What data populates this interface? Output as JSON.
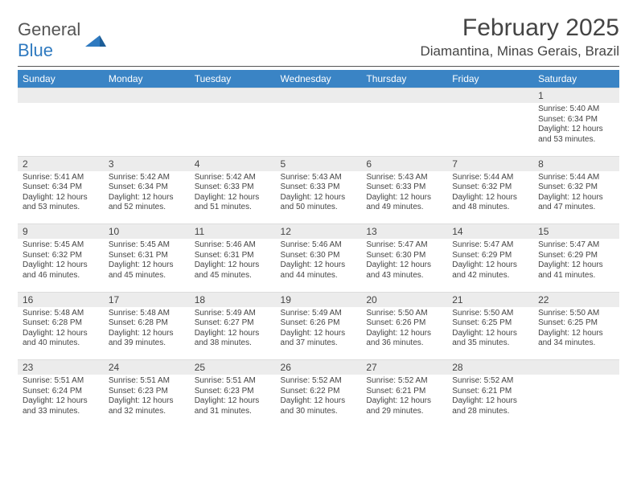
{
  "logo": {
    "word1": "General",
    "word2": "Blue"
  },
  "title": "February 2025",
  "location": "Diamantina, Minas Gerais, Brazil",
  "colors": {
    "header_bg": "#3a84c5",
    "header_text": "#ffffff",
    "daynum_bg": "#ececec",
    "text": "#444444",
    "logo_blue": "#2f7ac0",
    "rule": "#555555"
  },
  "weekdays": [
    "Sunday",
    "Monday",
    "Tuesday",
    "Wednesday",
    "Thursday",
    "Friday",
    "Saturday"
  ],
  "weeks": [
    [
      null,
      null,
      null,
      null,
      null,
      null,
      {
        "n": "1",
        "sr": "Sunrise: 5:40 AM",
        "ss": "Sunset: 6:34 PM",
        "d1": "Daylight: 12 hours",
        "d2": "and 53 minutes."
      }
    ],
    [
      {
        "n": "2",
        "sr": "Sunrise: 5:41 AM",
        "ss": "Sunset: 6:34 PM",
        "d1": "Daylight: 12 hours",
        "d2": "and 53 minutes."
      },
      {
        "n": "3",
        "sr": "Sunrise: 5:42 AM",
        "ss": "Sunset: 6:34 PM",
        "d1": "Daylight: 12 hours",
        "d2": "and 52 minutes."
      },
      {
        "n": "4",
        "sr": "Sunrise: 5:42 AM",
        "ss": "Sunset: 6:33 PM",
        "d1": "Daylight: 12 hours",
        "d2": "and 51 minutes."
      },
      {
        "n": "5",
        "sr": "Sunrise: 5:43 AM",
        "ss": "Sunset: 6:33 PM",
        "d1": "Daylight: 12 hours",
        "d2": "and 50 minutes."
      },
      {
        "n": "6",
        "sr": "Sunrise: 5:43 AM",
        "ss": "Sunset: 6:33 PM",
        "d1": "Daylight: 12 hours",
        "d2": "and 49 minutes."
      },
      {
        "n": "7",
        "sr": "Sunrise: 5:44 AM",
        "ss": "Sunset: 6:32 PM",
        "d1": "Daylight: 12 hours",
        "d2": "and 48 minutes."
      },
      {
        "n": "8",
        "sr": "Sunrise: 5:44 AM",
        "ss": "Sunset: 6:32 PM",
        "d1": "Daylight: 12 hours",
        "d2": "and 47 minutes."
      }
    ],
    [
      {
        "n": "9",
        "sr": "Sunrise: 5:45 AM",
        "ss": "Sunset: 6:32 PM",
        "d1": "Daylight: 12 hours",
        "d2": "and 46 minutes."
      },
      {
        "n": "10",
        "sr": "Sunrise: 5:45 AM",
        "ss": "Sunset: 6:31 PM",
        "d1": "Daylight: 12 hours",
        "d2": "and 45 minutes."
      },
      {
        "n": "11",
        "sr": "Sunrise: 5:46 AM",
        "ss": "Sunset: 6:31 PM",
        "d1": "Daylight: 12 hours",
        "d2": "and 45 minutes."
      },
      {
        "n": "12",
        "sr": "Sunrise: 5:46 AM",
        "ss": "Sunset: 6:30 PM",
        "d1": "Daylight: 12 hours",
        "d2": "and 44 minutes."
      },
      {
        "n": "13",
        "sr": "Sunrise: 5:47 AM",
        "ss": "Sunset: 6:30 PM",
        "d1": "Daylight: 12 hours",
        "d2": "and 43 minutes."
      },
      {
        "n": "14",
        "sr": "Sunrise: 5:47 AM",
        "ss": "Sunset: 6:29 PM",
        "d1": "Daylight: 12 hours",
        "d2": "and 42 minutes."
      },
      {
        "n": "15",
        "sr": "Sunrise: 5:47 AM",
        "ss": "Sunset: 6:29 PM",
        "d1": "Daylight: 12 hours",
        "d2": "and 41 minutes."
      }
    ],
    [
      {
        "n": "16",
        "sr": "Sunrise: 5:48 AM",
        "ss": "Sunset: 6:28 PM",
        "d1": "Daylight: 12 hours",
        "d2": "and 40 minutes."
      },
      {
        "n": "17",
        "sr": "Sunrise: 5:48 AM",
        "ss": "Sunset: 6:28 PM",
        "d1": "Daylight: 12 hours",
        "d2": "and 39 minutes."
      },
      {
        "n": "18",
        "sr": "Sunrise: 5:49 AM",
        "ss": "Sunset: 6:27 PM",
        "d1": "Daylight: 12 hours",
        "d2": "and 38 minutes."
      },
      {
        "n": "19",
        "sr": "Sunrise: 5:49 AM",
        "ss": "Sunset: 6:26 PM",
        "d1": "Daylight: 12 hours",
        "d2": "and 37 minutes."
      },
      {
        "n": "20",
        "sr": "Sunrise: 5:50 AM",
        "ss": "Sunset: 6:26 PM",
        "d1": "Daylight: 12 hours",
        "d2": "and 36 minutes."
      },
      {
        "n": "21",
        "sr": "Sunrise: 5:50 AM",
        "ss": "Sunset: 6:25 PM",
        "d1": "Daylight: 12 hours",
        "d2": "and 35 minutes."
      },
      {
        "n": "22",
        "sr": "Sunrise: 5:50 AM",
        "ss": "Sunset: 6:25 PM",
        "d1": "Daylight: 12 hours",
        "d2": "and 34 minutes."
      }
    ],
    [
      {
        "n": "23",
        "sr": "Sunrise: 5:51 AM",
        "ss": "Sunset: 6:24 PM",
        "d1": "Daylight: 12 hours",
        "d2": "and 33 minutes."
      },
      {
        "n": "24",
        "sr": "Sunrise: 5:51 AM",
        "ss": "Sunset: 6:23 PM",
        "d1": "Daylight: 12 hours",
        "d2": "and 32 minutes."
      },
      {
        "n": "25",
        "sr": "Sunrise: 5:51 AM",
        "ss": "Sunset: 6:23 PM",
        "d1": "Daylight: 12 hours",
        "d2": "and 31 minutes."
      },
      {
        "n": "26",
        "sr": "Sunrise: 5:52 AM",
        "ss": "Sunset: 6:22 PM",
        "d1": "Daylight: 12 hours",
        "d2": "and 30 minutes."
      },
      {
        "n": "27",
        "sr": "Sunrise: 5:52 AM",
        "ss": "Sunset: 6:21 PM",
        "d1": "Daylight: 12 hours",
        "d2": "and 29 minutes."
      },
      {
        "n": "28",
        "sr": "Sunrise: 5:52 AM",
        "ss": "Sunset: 6:21 PM",
        "d1": "Daylight: 12 hours",
        "d2": "and 28 minutes."
      },
      null
    ]
  ]
}
